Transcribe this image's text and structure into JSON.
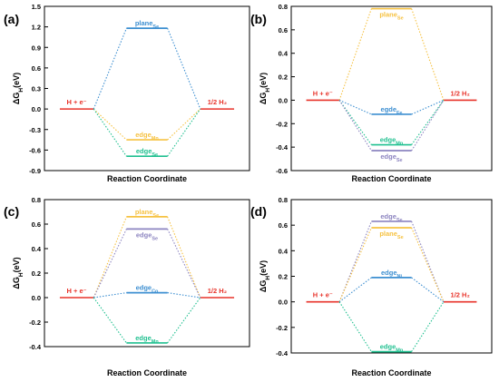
{
  "colors": {
    "end": "#e8332a",
    "yellow": "#f6c242",
    "blue": "#3d8fd1",
    "green": "#20c090",
    "purple": "#8c84c0",
    "axis": "#000000"
  },
  "chart_data": [
    {
      "type": "line",
      "panel_label": "(a)",
      "xlabel": "Reaction Coordinate",
      "ylabel_main": "ΔG",
      "ylabel_sub": "H",
      "ylabel_unit": "(eV)",
      "ylim": [
        -0.9,
        1.5
      ],
      "yticks": [
        "-0.9",
        "-0.6",
        "-0.3",
        "0.0",
        "0.3",
        "0.6",
        "0.9",
        "1.2",
        "1.5"
      ],
      "start_label": "H + e⁻",
      "end_label": "1/2 H₂",
      "states": [
        {
          "main": "plane",
          "sub": "Se",
          "value": 1.18,
          "color": "blue",
          "label_pos": "above"
        },
        {
          "main": "edge",
          "sub": "Mn",
          "value": -0.45,
          "color": "yellow",
          "label_pos": "above"
        },
        {
          "main": "edge",
          "sub": "Se",
          "value": -0.69,
          "color": "green",
          "label_pos": "above"
        }
      ]
    },
    {
      "type": "line",
      "panel_label": "(b)",
      "xlabel": "Reaction Coordinate",
      "ylabel_main": "ΔG",
      "ylabel_sub": "H",
      "ylabel_unit": "(eV)",
      "ylim": [
        -0.6,
        0.8
      ],
      "yticks": [
        "-0.6",
        "-0.4",
        "-0.2",
        "0.0",
        "0.2",
        "0.4",
        "0.6",
        "0.8"
      ],
      "start_label": "H + e⁻",
      "end_label": "1/2 H₂",
      "states": [
        {
          "main": "plane",
          "sub": "Se",
          "value": 0.78,
          "color": "yellow",
          "label_pos": "below"
        },
        {
          "main": "egde",
          "sub": "Fe",
          "value": -0.12,
          "color": "blue",
          "label_pos": "above"
        },
        {
          "main": "edge",
          "sub": "Mn",
          "value": -0.38,
          "color": "green",
          "label_pos": "above"
        },
        {
          "main": "edge",
          "sub": "Se",
          "value": -0.43,
          "color": "purple",
          "label_pos": "below"
        }
      ]
    },
    {
      "type": "line",
      "panel_label": "(c)",
      "xlabel": "Reaction Coordinate",
      "ylabel_main": "ΔG",
      "ylabel_sub": "H",
      "ylabel_unit": "(eV)",
      "ylim": [
        -0.4,
        0.8
      ],
      "yticks": [
        "-0.4",
        "-0.2",
        "0.0",
        "0.2",
        "0.4",
        "0.6",
        "0.8"
      ],
      "start_label": "H + e⁻",
      "end_label": "1/2 H₂",
      "states": [
        {
          "main": "plane",
          "sub": "Se",
          "value": 0.66,
          "color": "yellow",
          "label_pos": "above"
        },
        {
          "main": "edge",
          "sub": "Se",
          "value": 0.56,
          "color": "purple",
          "label_pos": "below"
        },
        {
          "main": "edge",
          "sub": "Co",
          "value": 0.04,
          "color": "blue",
          "label_pos": "above"
        },
        {
          "main": "edge",
          "sub": "Mn",
          "value": -0.37,
          "color": "green",
          "label_pos": "above"
        }
      ]
    },
    {
      "type": "line",
      "panel_label": "(d)",
      "xlabel": "Reaction Coordinate",
      "ylabel_main": "ΔG",
      "ylabel_sub": "H",
      "ylabel_unit": "(eV)",
      "ylim": [
        -0.4,
        0.8
      ],
      "yticks": [
        "-0.4",
        "-0.2",
        "0.0",
        "0.2",
        "0.4",
        "0.6",
        "0.8"
      ],
      "start_label": "H + e⁻",
      "end_label": "1/2 H₂",
      "states": [
        {
          "main": "edge",
          "sub": "Se",
          "value": 0.63,
          "color": "purple",
          "label_pos": "above"
        },
        {
          "main": "plane",
          "sub": "Se",
          "value": 0.58,
          "color": "yellow",
          "label_pos": "below"
        },
        {
          "main": "edge",
          "sub": "Ni",
          "value": 0.19,
          "color": "blue",
          "label_pos": "above"
        },
        {
          "main": "edge",
          "sub": "Mn",
          "value": -0.39,
          "color": "green",
          "label_pos": "above"
        }
      ]
    }
  ]
}
